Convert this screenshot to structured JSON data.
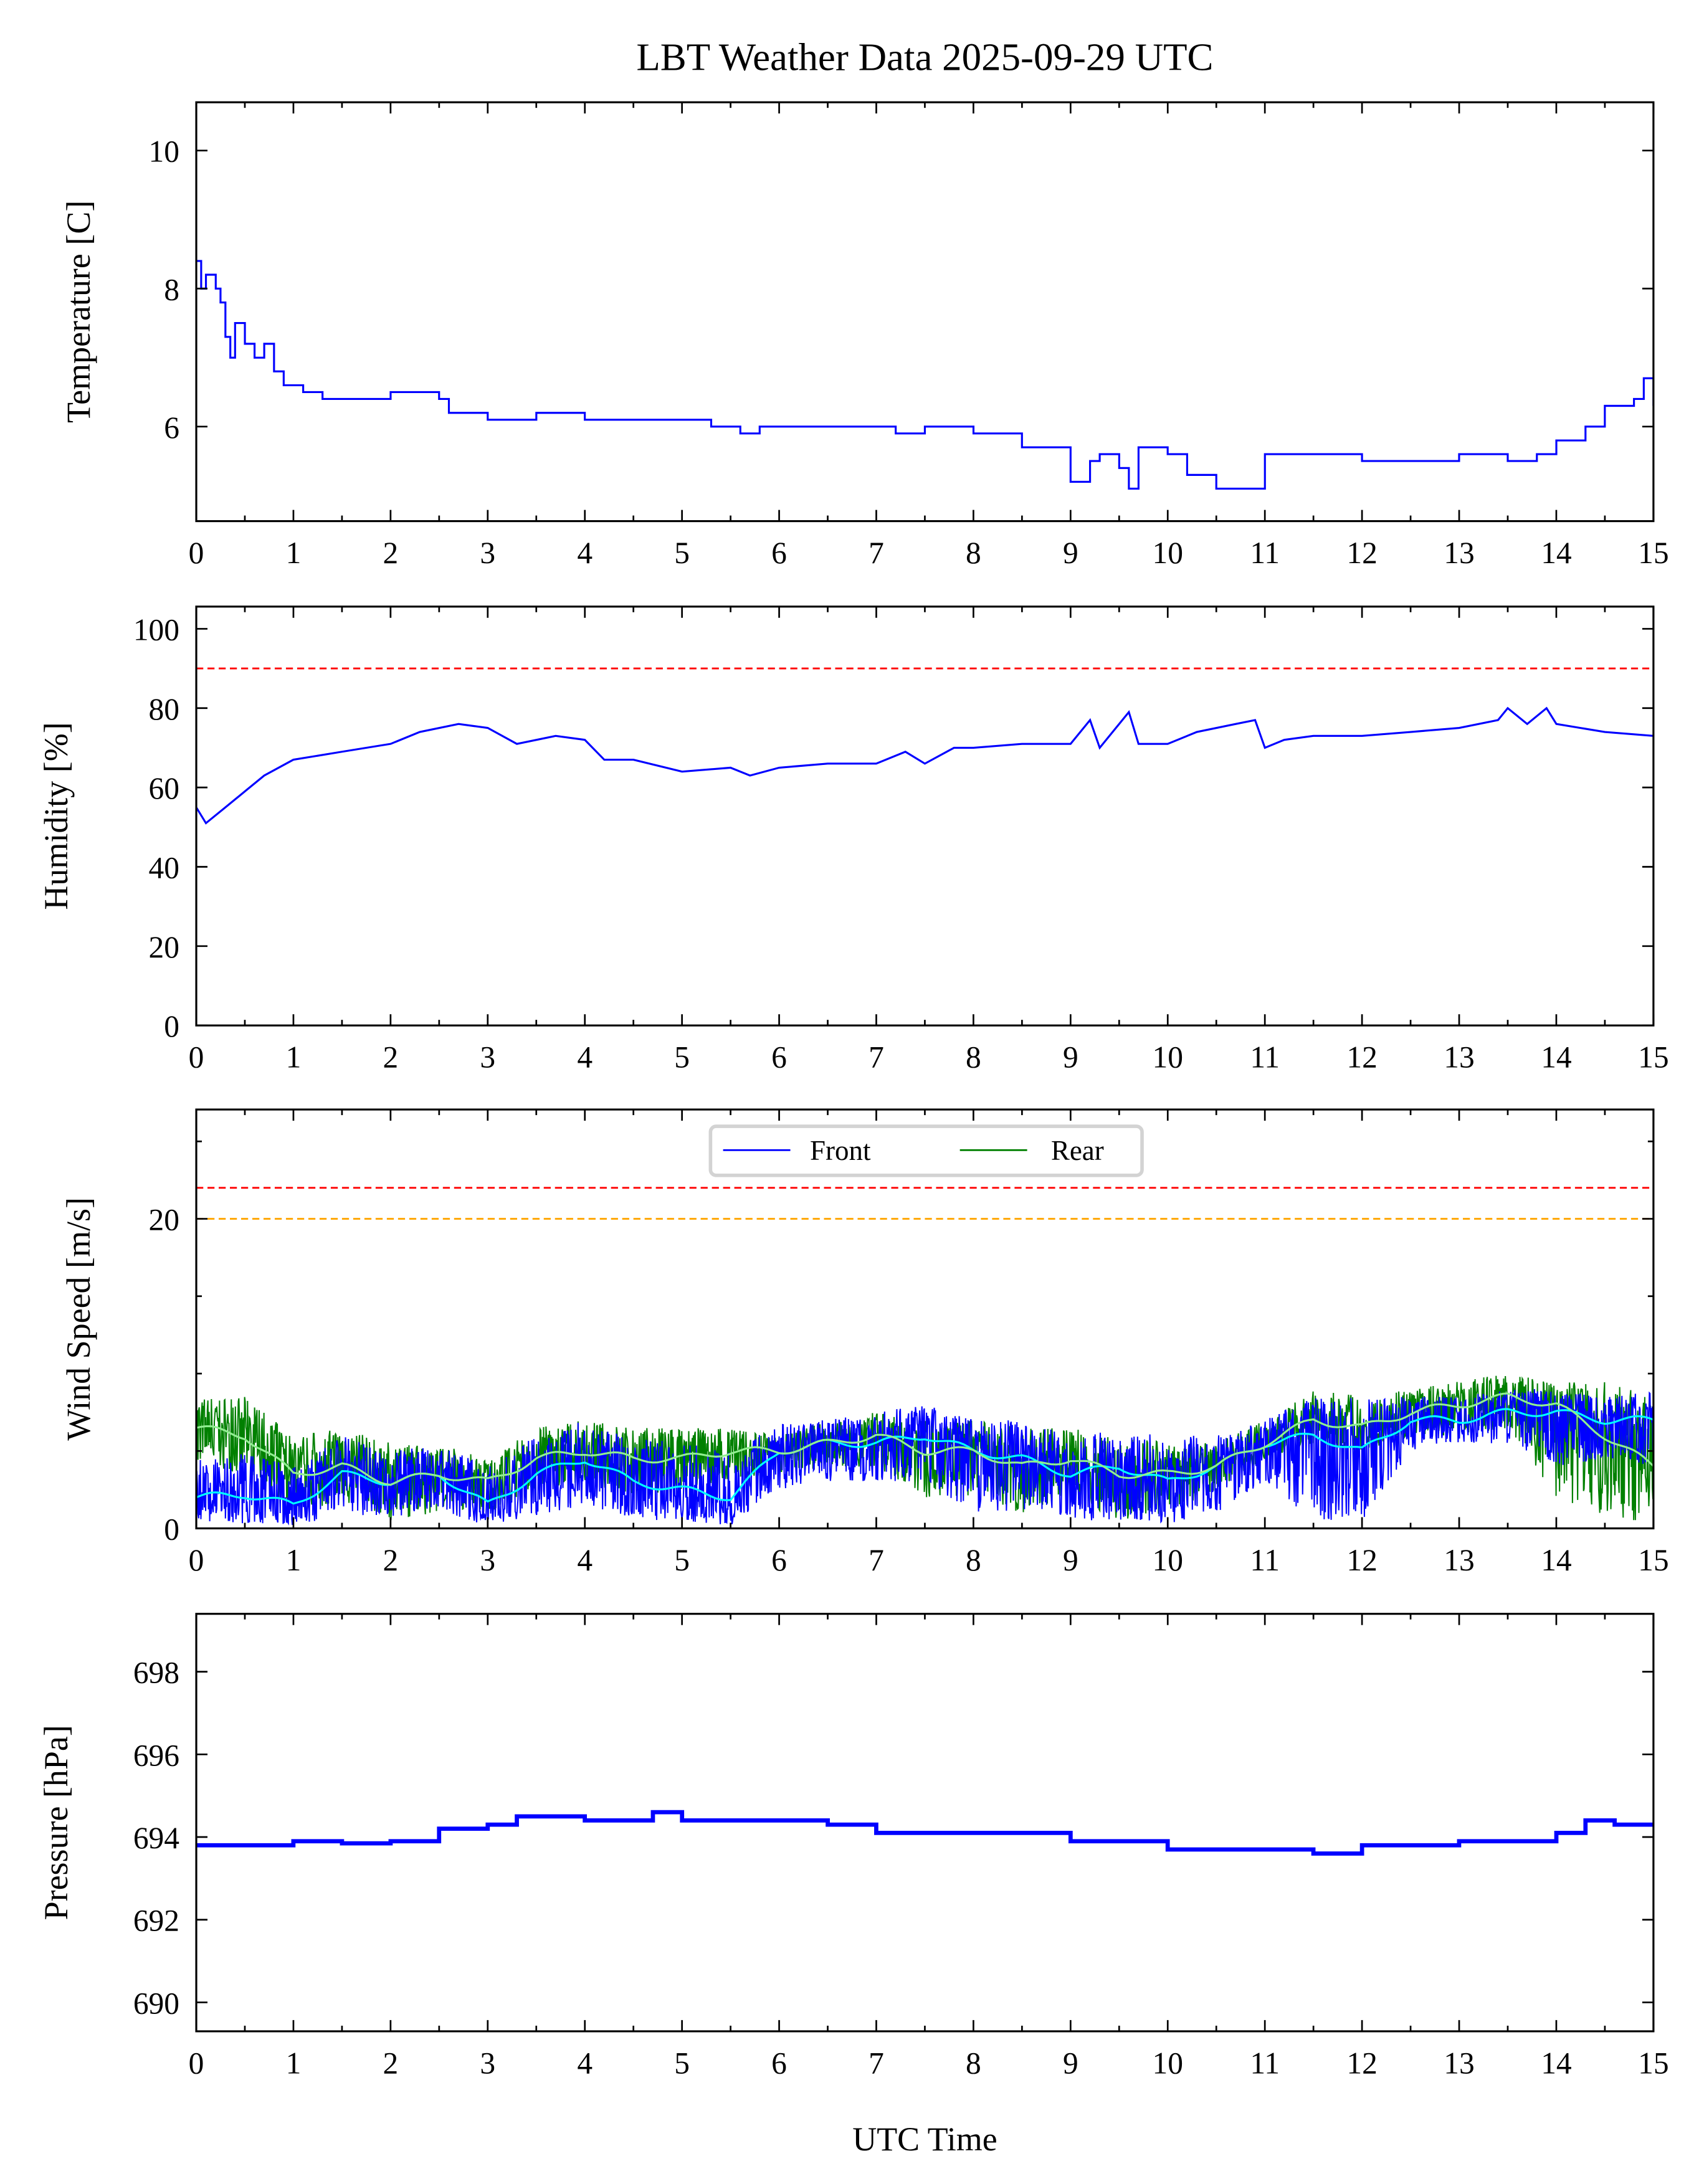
{
  "chart_data": {
    "type": "line",
    "title": "LBT Weather Data 2025-09-29 UTC",
    "xlabel": "UTC Time",
    "xlim": [
      0,
      15
    ],
    "xticks": [
      "0",
      "1",
      "2",
      "3",
      "4",
      "5",
      "6",
      "7",
      "8",
      "9",
      "10",
      "11",
      "12",
      "13",
      "14",
      "15"
    ],
    "colors": {
      "front": "#0000ff",
      "rear": "#008000",
      "front_mean": "#00ffff",
      "rear_mean": "#90ee90",
      "limit_red": "#ff0000",
      "limit_orange": "#ffa500"
    },
    "panels": [
      {
        "id": "temperature",
        "ylabel": "Temperature [C]",
        "ylim": [
          4.63,
          10.7
        ],
        "yticks": [
          6,
          8,
          10
        ],
        "ytick_labels": [
          "6",
          "8",
          "10"
        ],
        "hlines": [],
        "series": [
          {
            "name": "Temperature",
            "color": "#0000ff",
            "step": true,
            "x": [
              0,
              0.05,
              0.1,
              0.2,
              0.25,
              0.3,
              0.35,
              0.4,
              0.5,
              0.6,
              0.7,
              0.8,
              0.9,
              1.1,
              1.3,
              2.0,
              2.5,
              2.6,
              3.0,
              3.5,
              4.0,
              4.5,
              5.0,
              5.3,
              5.6,
              5.8,
              6.5,
              7.0,
              7.2,
              7.5,
              8.0,
              8.5,
              8.8,
              9.0,
              9.2,
              9.3,
              9.5,
              9.6,
              9.7,
              10.0,
              10.2,
              10.5,
              11.0,
              12.0,
              12.5,
              13.0,
              13.5,
              13.8,
              14.0,
              14.3,
              14.5,
              14.8,
              14.9,
              15.0
            ],
            "y": [
              8.4,
              8.0,
              8.2,
              8.0,
              7.8,
              7.3,
              7.0,
              7.5,
              7.2,
              7.0,
              7.2,
              6.8,
              6.6,
              6.5,
              6.4,
              6.5,
              6.4,
              6.2,
              6.1,
              6.2,
              6.1,
              6.1,
              6.1,
              6.0,
              5.9,
              6.0,
              6.0,
              6.0,
              5.9,
              6.0,
              5.9,
              5.7,
              5.7,
              5.2,
              5.5,
              5.6,
              5.4,
              5.1,
              5.7,
              5.6,
              5.3,
              5.1,
              5.6,
              5.5,
              5.5,
              5.6,
              5.5,
              5.6,
              5.8,
              6.0,
              6.3,
              6.4,
              6.7,
              6.3
            ]
          }
        ]
      },
      {
        "id": "humidity",
        "ylabel": "Humidity [%]",
        "ylim": [
          0,
          105.6
        ],
        "yticks": [
          0,
          20,
          40,
          60,
          80,
          100
        ],
        "ytick_labels": [
          "0",
          "20",
          "40",
          "60",
          "80",
          "100"
        ],
        "hlines": [
          {
            "y": 90,
            "color": "#ff0000"
          }
        ],
        "series": [
          {
            "name": "Humidity",
            "color": "#0000ff",
            "step": false,
            "x": [
              0,
              0.1,
              0.3,
              0.5,
              0.7,
              1.0,
              1.5,
              2.0,
              2.3,
              2.7,
              3.0,
              3.3,
              3.7,
              4.0,
              4.2,
              4.5,
              5.0,
              5.5,
              5.7,
              6.0,
              6.5,
              7.0,
              7.3,
              7.5,
              7.8,
              8.0,
              8.5,
              9.0,
              9.2,
              9.3,
              9.6,
              9.7,
              10.0,
              10.3,
              10.7,
              10.9,
              11.0,
              11.2,
              11.5,
              12.0,
              12.5,
              13.0,
              13.4,
              13.5,
              13.7,
              13.9,
              14.0,
              14.5,
              15.0
            ],
            "y": [
              55,
              51,
              55,
              59,
              63,
              67,
              69,
              71,
              74,
              76,
              75,
              71,
              73,
              72,
              67,
              67,
              64,
              65,
              63,
              65,
              66,
              66,
              69,
              66,
              70,
              70,
              71,
              71,
              77,
              70,
              79,
              71,
              71,
              74,
              76,
              77,
              70,
              72,
              73,
              73,
              74,
              75,
              77,
              80,
              76,
              80,
              76,
              74,
              73
            ]
          }
        ]
      },
      {
        "id": "wind",
        "ylabel": "Wind Speed [m/s]",
        "ylim": [
          0,
          27.06
        ],
        "yticks": [
          0,
          20
        ],
        "ytick_labels": [
          "0",
          "20"
        ],
        "minor_yticks": [
          5,
          10,
          15,
          25
        ],
        "hlines": [
          {
            "y": 22,
            "color": "#ff0000"
          },
          {
            "y": 20,
            "color": "#ffa500"
          }
        ],
        "legend": {
          "placement": "top-center",
          "entries": [
            "Front",
            "Rear"
          ]
        },
        "x": [
          0,
          0.5,
          1,
          1.5,
          2,
          2.5,
          3,
          3.5,
          4,
          4.5,
          5,
          5.5,
          6,
          6.5,
          7,
          7.5,
          8,
          8.5,
          9,
          9.5,
          10,
          10.5,
          11,
          11.5,
          12,
          12.5,
          13,
          13.5,
          14,
          14.5,
          15
        ],
        "front": {
          "mean": [
            2,
            2.2,
            1.5,
            3.5,
            3,
            3.5,
            1.5,
            3.5,
            4.5,
            3,
            2.5,
            2,
            5,
            5.5,
            5.5,
            6,
            5,
            4.5,
            3.5,
            4,
            3,
            4,
            5.5,
            6,
            5,
            7,
            7,
            7.5,
            7.5,
            7,
            7
          ],
          "low": [
            0.5,
            0.3,
            0.2,
            0.8,
            0.8,
            1,
            0.2,
            0.8,
            1.5,
            0.5,
            0.5,
            0.2,
            2.5,
            3,
            3,
            3,
            1,
            1,
            0.5,
            0.5,
            0.2,
            1,
            3,
            0.5,
            0.5,
            5,
            5.5,
            5.5,
            4,
            4.5,
            4
          ],
          "high": [
            4.5,
            5,
            4,
            6,
            5,
            5.5,
            4,
            6,
            7,
            6,
            5.5,
            5,
            7,
            7,
            7.5,
            8,
            7,
            7,
            6,
            6.5,
            6,
            6,
            7,
            8.5,
            8.5,
            8.5,
            8.5,
            9,
            9,
            8.5,
            9
          ]
        },
        "rear": {
          "mean": [
            6.5,
            6,
            3.5,
            4,
            3,
            3.5,
            3,
            4.5,
            5,
            4.5,
            4.5,
            5,
            5,
            5.5,
            6,
            5,
            5,
            4,
            4.5,
            3.5,
            3.5,
            4,
            5.5,
            7,
            6.5,
            7.5,
            8,
            8.5,
            8,
            6,
            4
          ],
          "low": [
            4,
            3.5,
            1,
            1.5,
            0.5,
            1,
            1,
            2.5,
            3,
            2,
            2.5,
            3,
            3.5,
            4,
            4,
            2,
            2,
            1,
            2,
            0.5,
            1,
            2.5,
            4.5,
            5.5,
            5,
            6,
            6,
            6.5,
            2,
            0.5,
            0.5
          ],
          "high": [
            8.5,
            8.5,
            6,
            6.5,
            5.5,
            5.5,
            4.5,
            6.5,
            7,
            6.5,
            6.5,
            6.5,
            6,
            7,
            7.5,
            7,
            7,
            6.5,
            6.5,
            6,
            5.5,
            5.5,
            7,
            9,
            8.5,
            9,
            9.5,
            10,
            9.5,
            9.5,
            8.5
          ]
        }
      },
      {
        "id": "pressure",
        "ylabel": "Pressure [hPa]",
        "ylim": [
          689.3,
          699.4
        ],
        "yticks": [
          690,
          692,
          694,
          696,
          698
        ],
        "ytick_labels": [
          "690",
          "692",
          "694",
          "696",
          "698"
        ],
        "hlines": [],
        "series": [
          {
            "name": "Pressure",
            "color": "#0000ff",
            "step": true,
            "x": [
              0,
              1,
              1.5,
              2,
              2.5,
              3,
              3.3,
              4,
              4.7,
              5,
              6,
              6.5,
              7,
              8,
              8.5,
              9,
              9.5,
              10,
              11,
              11.5,
              12,
              13,
              13.5,
              14,
              14.3,
              14.6,
              15
            ],
            "y": [
              693.8,
              693.9,
              693.85,
              693.9,
              694.2,
              694.3,
              694.5,
              694.4,
              694.6,
              694.4,
              694.4,
              694.3,
              694.1,
              694.1,
              694.1,
              693.9,
              693.9,
              693.7,
              693.7,
              693.6,
              693.8,
              693.9,
              693.9,
              694.1,
              694.4,
              694.3,
              694.3
            ]
          }
        ]
      }
    ]
  }
}
